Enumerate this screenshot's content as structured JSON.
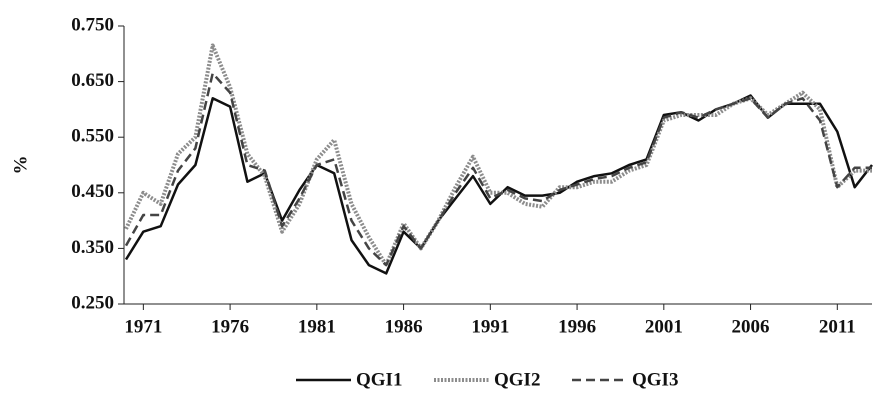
{
  "chart_data": {
    "type": "line",
    "y_label": "%",
    "x": [
      1970,
      1971,
      1972,
      1973,
      1974,
      1975,
      1976,
      1977,
      1978,
      1979,
      1980,
      1981,
      1982,
      1983,
      1984,
      1985,
      1986,
      1987,
      1988,
      1989,
      1990,
      1991,
      1992,
      1993,
      1994,
      1995,
      1996,
      1997,
      1998,
      1999,
      2000,
      2001,
      2002,
      2003,
      2004,
      2005,
      2006,
      2007,
      2008,
      2009,
      2010,
      2011,
      2012,
      2013
    ],
    "xlim": [
      1970,
      2013
    ],
    "xticks": [
      1971,
      1976,
      1981,
      1986,
      1991,
      1996,
      2001,
      2006,
      2011
    ],
    "ylim": [
      0.25,
      0.75
    ],
    "yticks": [
      {
        "value": 0.25,
        "label": "0.250"
      },
      {
        "value": 0.35,
        "label": "0.350"
      },
      {
        "value": 0.45,
        "label": "0.450"
      },
      {
        "value": 0.55,
        "label": "0.550"
      },
      {
        "value": 0.65,
        "label": "0.650"
      },
      {
        "value": 0.75,
        "label": "0.750"
      }
    ],
    "legend": "bottom",
    "series": [
      {
        "name": "QGI1",
        "color": "#111111",
        "dash": "solid",
        "values": [
          0.33,
          0.38,
          0.39,
          0.465,
          0.5,
          0.62,
          0.605,
          0.47,
          0.485,
          0.4,
          0.455,
          0.5,
          0.485,
          0.365,
          0.32,
          0.305,
          0.38,
          0.35,
          0.4,
          0.44,
          0.48,
          0.43,
          0.46,
          0.445,
          0.445,
          0.45,
          0.47,
          0.48,
          0.485,
          0.5,
          0.51,
          0.59,
          0.595,
          0.58,
          0.6,
          0.61,
          0.625,
          0.585,
          0.61,
          0.61,
          0.61,
          0.56,
          0.46,
          0.5
        ]
      },
      {
        "name": "QGI2",
        "color": "#8c8c8c",
        "dash": "dotted",
        "values": [
          0.385,
          0.45,
          0.43,
          0.52,
          0.55,
          0.715,
          0.64,
          0.52,
          0.48,
          0.38,
          0.43,
          0.51,
          0.545,
          0.43,
          0.37,
          0.32,
          0.395,
          0.35,
          0.4,
          0.46,
          0.515,
          0.45,
          0.45,
          0.43,
          0.425,
          0.46,
          0.46,
          0.47,
          0.47,
          0.49,
          0.5,
          0.58,
          0.59,
          0.59,
          0.59,
          0.61,
          0.62,
          0.59,
          0.61,
          0.63,
          0.6,
          0.46,
          0.49,
          0.49
        ]
      },
      {
        "name": "QGI3",
        "color": "#444444",
        "dash": "dashed",
        "values": [
          0.355,
          0.41,
          0.41,
          0.49,
          0.53,
          0.665,
          0.63,
          0.5,
          0.49,
          0.39,
          0.44,
          0.5,
          0.51,
          0.4,
          0.35,
          0.32,
          0.39,
          0.35,
          0.4,
          0.45,
          0.495,
          0.44,
          0.455,
          0.44,
          0.435,
          0.455,
          0.465,
          0.475,
          0.48,
          0.495,
          0.505,
          0.585,
          0.595,
          0.585,
          0.6,
          0.61,
          0.62,
          0.585,
          0.61,
          0.62,
          0.58,
          0.46,
          0.495,
          0.495
        ]
      }
    ]
  }
}
